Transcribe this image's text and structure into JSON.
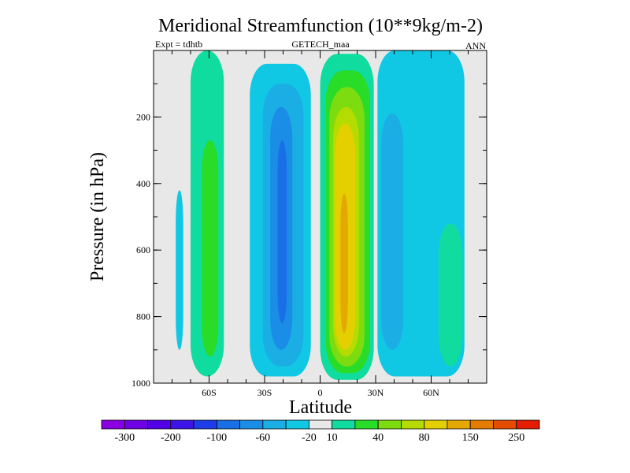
{
  "chart_data": {
    "type": "heatmap",
    "title": "Meridional Streamfunction (10**9kg/m-2)",
    "subtitle_left": "Expt = tdhtb",
    "subtitle_center": "GETECH_maa",
    "subtitle_right": "ANN",
    "xlabel": "Latitude",
    "ylabel": "Pressure (in hPa)",
    "xlim": [
      -90,
      90
    ],
    "ylim": [
      0,
      1000
    ],
    "x_ticks": [
      {
        "value": -60,
        "label": "60S"
      },
      {
        "value": -30,
        "label": "30S"
      },
      {
        "value": 0,
        "label": "0"
      },
      {
        "value": 30,
        "label": "30N"
      },
      {
        "value": 60,
        "label": "60N"
      }
    ],
    "y_ticks": [
      {
        "value": 200,
        "label": "200"
      },
      {
        "value": 400,
        "label": "400"
      },
      {
        "value": 600,
        "label": "600"
      },
      {
        "value": 800,
        "label": "800"
      },
      {
        "value": 1000,
        "label": "1000"
      }
    ],
    "colorbar": {
      "colors": [
        "#8a00e0",
        "#6e00e4",
        "#5200e6",
        "#3c14e8",
        "#1e3ce8",
        "#1a6ee6",
        "#1a8ee6",
        "#1aaee4",
        "#10c8e4",
        "#e8e8e8",
        "#10dca0",
        "#28dc28",
        "#7cdc10",
        "#b4dc00",
        "#e4d000",
        "#e4a800",
        "#e47c00",
        "#e44c00",
        "#e41c00"
      ],
      "labels": [
        "-300",
        "-200",
        "-100",
        "-60",
        "-20",
        "10",
        "40",
        "80",
        "150",
        "250"
      ]
    },
    "regions": [
      {
        "value": 10,
        "color": "#10dca0",
        "lat_min": -70,
        "lat_max": -52,
        "p_top": 0,
        "p_bottom": 980
      },
      {
        "value": 40,
        "color": "#28dc28",
        "lat_min": -64,
        "lat_max": -55,
        "p_top": 270,
        "p_bottom": 920
      },
      {
        "value": -20,
        "color": "#10c8e4",
        "lat_min": -78,
        "lat_max": -74,
        "p_top": 420,
        "p_bottom": 900
      },
      {
        "value": -20,
        "color": "#10c8e4",
        "lat_min": -38,
        "lat_max": -5,
        "p_top": 40,
        "p_bottom": 980
      },
      {
        "value": -60,
        "color": "#1aaee4",
        "lat_min": -31,
        "lat_max": -9,
        "p_top": 100,
        "p_bottom": 950
      },
      {
        "value": -100,
        "color": "#1a8ee6",
        "lat_min": -27,
        "lat_max": -15,
        "p_top": 170,
        "p_bottom": 900
      },
      {
        "value": -120,
        "color": "#1a6ee6",
        "lat_min": -23,
        "lat_max": -18,
        "p_top": 270,
        "p_bottom": 820
      },
      {
        "value": 10,
        "color": "#10dca0",
        "lat_min": 0,
        "lat_max": 29,
        "p_top": 10,
        "p_bottom": 990
      },
      {
        "value": 40,
        "color": "#28dc28",
        "lat_min": 3,
        "lat_max": 27,
        "p_top": 60,
        "p_bottom": 970
      },
      {
        "value": 80,
        "color": "#7cdc10",
        "lat_min": 5,
        "lat_max": 24,
        "p_top": 110,
        "p_bottom": 950
      },
      {
        "value": 100,
        "color": "#b4dc00",
        "lat_min": 7,
        "lat_max": 21,
        "p_top": 170,
        "p_bottom": 920
      },
      {
        "value": 120,
        "color": "#e4d000",
        "lat_min": 8,
        "lat_max": 19,
        "p_top": 220,
        "p_bottom": 900
      },
      {
        "value": 150,
        "color": "#e4a800",
        "lat_min": 11,
        "lat_max": 15,
        "p_top": 430,
        "p_bottom": 850
      },
      {
        "value": -20,
        "color": "#10c8e4",
        "lat_min": 31,
        "lat_max": 78,
        "p_top": 0,
        "p_bottom": 980
      },
      {
        "value": -60,
        "color": "#1aaee4",
        "lat_min": 33,
        "lat_max": 45,
        "p_top": 190,
        "p_bottom": 900
      },
      {
        "value": 10,
        "color": "#10dca0",
        "lat_min": 64,
        "lat_max": 77,
        "p_top": 520,
        "p_bottom": 950
      }
    ]
  }
}
